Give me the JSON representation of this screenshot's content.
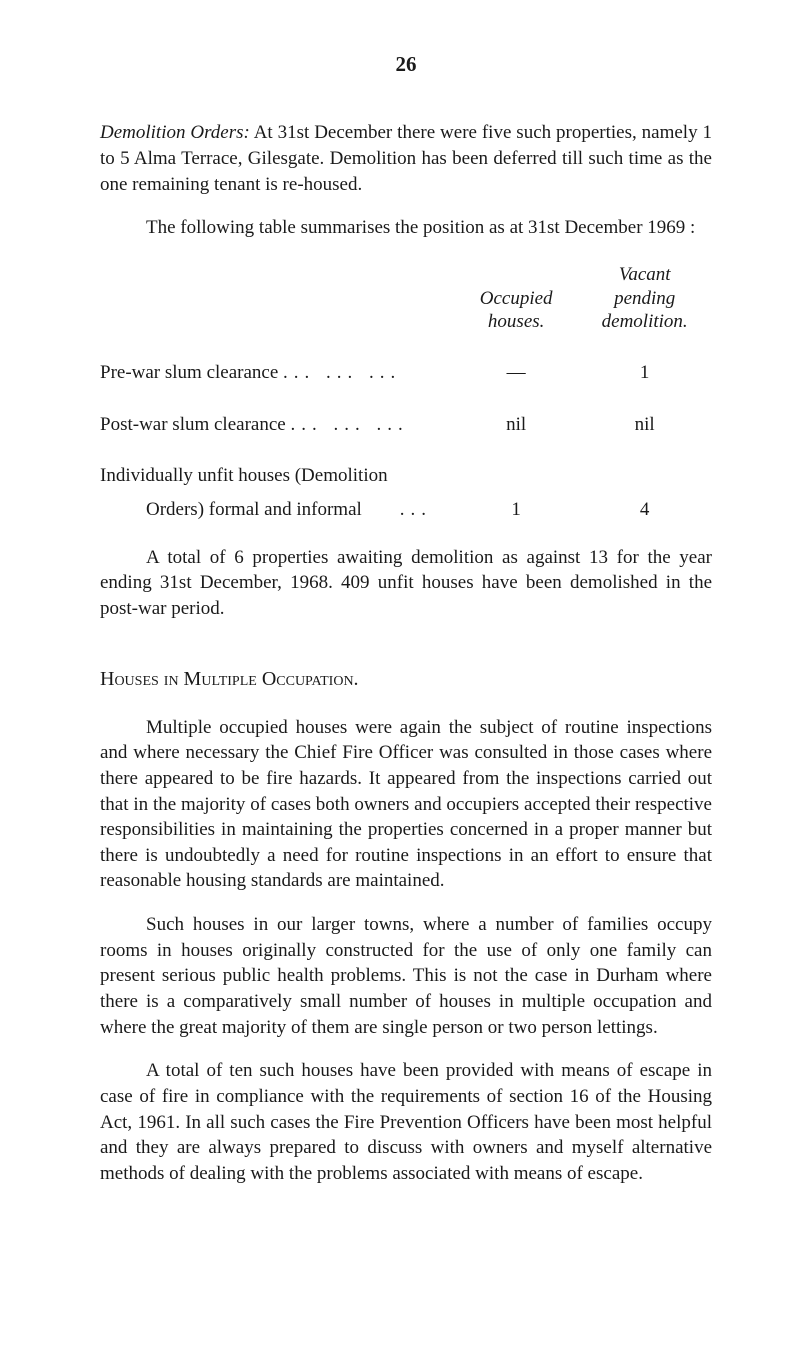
{
  "page_number": "26",
  "p1_prefix_italic": "Demolition Orders:",
  "p1_rest": " At 31st December there were five such properties, namely 1 to 5 Alma Terrace, Gilesgate. Demolition has been deferred till such time as the one remaining tenant is re-housed.",
  "p2": "The following table summarises the position as at 31st December 1969 :",
  "tbl": {
    "hdr_a_l1": "Occupied",
    "hdr_a_l2": "houses.",
    "hdr_b_l1": "Vacant",
    "hdr_b_l2": "pending",
    "hdr_b_l3": "demolition.",
    "rows": [
      {
        "label": "Pre-war slum clearance",
        "dots": "...      ...      ...",
        "a": "—",
        "b": "1"
      },
      {
        "label": "Post-war slum clearance",
        "dots": "...      ...      ...",
        "a": "nil",
        "b": "nil"
      }
    ],
    "row3_l1": "Individually unfit houses (Demolition",
    "row3_l2": "Orders) formal and informal",
    "row3_dots": "...",
    "row3_a": "1",
    "row3_b": "4"
  },
  "p3": "A total of 6 properties awaiting demolition as against 13 for the year ending 31st December, 1968. 409 unfit houses have been demolished in the post-war period.",
  "heading": "Houses in Multiple Occupation.",
  "p4": "Multiple occupied houses were again the subject of routine in­spections and where necessary the Chief Fire Officer was consulted in those cases where there appeared to be fire hazards. It appeared from the inspections carried out that in the majority of cases both owners and occupiers accepted their respective responsibilities in maintaining the properties concerned in a proper manner but there is undoubtedly a need for routine inspections in an effort to ensure that reasonable housing standards are maintained.",
  "p5": "Such houses in our larger towns, where a number of families occupy rooms in houses originally constructed for the use of only one family can present serious public health problems. This is not the case in Durham where there is a comparatively small number of houses in multiple occupation and where the great majority of them are single person or two person lettings.",
  "p6": "A total of ten such houses have been provided with means of escape in case of fire in compliance with the requirements of section 16 of the Housing Act, 1961. In all such cases the Fire Prevention Officers have been most helpful and they are always prepared to discuss with owners and myself alternative methods of dealing with the problems associated with means of escape."
}
